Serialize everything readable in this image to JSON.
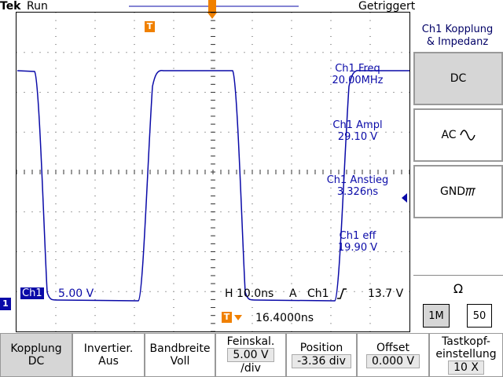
{
  "header": {
    "brand": "Tek",
    "status": "Run",
    "trigger_state": "Getriggert"
  },
  "side_menu": {
    "title_line1": "Ch1 Kopplung",
    "title_line2": "& Impedanz",
    "buttons": [
      {
        "label": "DC",
        "icon": ""
      },
      {
        "label": "AC",
        "icon": "ac-wave-icon"
      },
      {
        "label": "GND",
        "icon": "ground-icon"
      }
    ],
    "impedance_symbol": "Ω",
    "impedance_options": [
      "1M",
      "50"
    ],
    "impedance_selected": "1M"
  },
  "measurements": [
    {
      "label": "Ch1 Freq",
      "value": "20.00MHz"
    },
    {
      "label": "Ch1 Ampl",
      "value": "29.10 V"
    },
    {
      "label": "Ch1 Anstieg",
      "value": "3.326ns"
    },
    {
      "label": "Ch1 eff",
      "value": "19.90 V"
    }
  ],
  "status_line": {
    "channel": "Ch1",
    "volts_div": "5.00 V",
    "timebase": "H 10.0ns",
    "trigger_mode": "A",
    "trigger_source": "Ch1",
    "trigger_level": "13.7 V",
    "trigger_position": "16.4000ns"
  },
  "markers": {
    "channel_marker": "1",
    "trigger_marker": "T"
  },
  "bottom_menu": [
    {
      "line1": "Kopplung",
      "line2": "DC"
    },
    {
      "line1": "Invertier.",
      "line2": "Aus"
    },
    {
      "line1": "Bandbreite",
      "line2": "Voll"
    },
    {
      "line1": "Feinskal.",
      "line2": "5.00 V",
      "line3": "/div"
    },
    {
      "line1": "Position",
      "line2": "-3.36 div"
    },
    {
      "line1": "Offset",
      "line2": "0.000 V"
    },
    {
      "line1": "Tastkopf-",
      "line2": "einstellung",
      "line3": "10 X"
    }
  ],
  "colors": {
    "trace": "#0a0aa8",
    "trigger": "#f08000",
    "grid": "#000000",
    "active_button": "#d6d6d6"
  }
}
